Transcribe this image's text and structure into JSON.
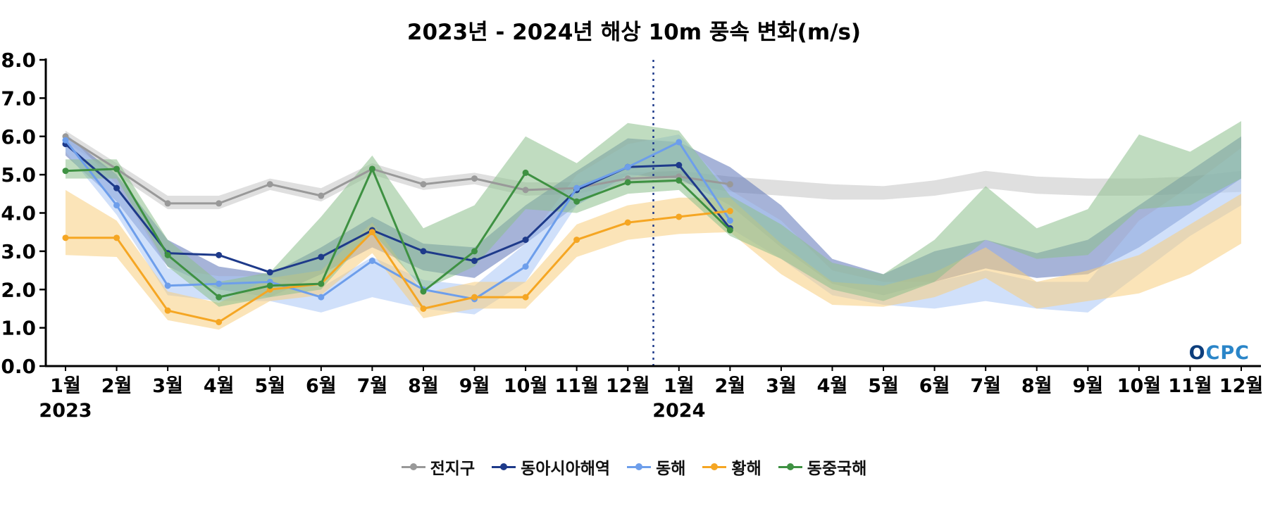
{
  "watermark": "OCPC",
  "chart_data": {
    "type": "line",
    "title": "2023년 - 2024년 해상 10m 풍속 변화(m/s)",
    "xlabel": "",
    "ylabel": "",
    "ylim": [
      0,
      8
    ],
    "ytick_values": [
      0,
      1,
      2,
      3,
      4,
      5,
      6,
      7,
      8
    ],
    "ytick_labels": [
      "0.0",
      "1.0",
      "2.0",
      "3.0",
      "4.0",
      "5.0",
      "6.0",
      "7.0",
      "8.0"
    ],
    "x_labels": [
      "1월",
      "2월",
      "3월",
      "4월",
      "5월",
      "6월",
      "7월",
      "8월",
      "9월",
      "10월",
      "11월",
      "12월",
      "1월",
      "2월",
      "3월",
      "4월",
      "5월",
      "6월",
      "7월",
      "8월",
      "9월",
      "10월",
      "11월",
      "12월"
    ],
    "year_labels": [
      {
        "label": "2023",
        "month_index": 0
      },
      {
        "label": "2024",
        "month_index": 12
      }
    ],
    "divider_after_index": 11,
    "legend_position": "bottom",
    "grid": false,
    "series": [
      {
        "key": "global",
        "name": "전지구",
        "color": "#999999",
        "band_color": "#c4c4c4",
        "values": [
          6.0,
          5.15,
          4.25,
          4.25,
          4.75,
          4.45,
          5.15,
          4.75,
          4.9,
          4.6,
          4.65,
          4.9,
          4.95,
          4.75,
          null,
          null,
          null,
          null,
          null,
          null,
          null,
          null,
          null,
          null
        ],
        "band": [
          [
            5.85,
            6.15
          ],
          [
            5.0,
            5.3
          ],
          [
            4.1,
            4.45
          ],
          [
            4.1,
            4.45
          ],
          [
            4.6,
            4.9
          ],
          [
            4.3,
            4.65
          ],
          [
            5.0,
            5.3
          ],
          [
            4.6,
            4.9
          ],
          [
            4.75,
            5.05
          ],
          [
            4.45,
            4.8
          ],
          [
            4.5,
            4.8
          ],
          [
            4.75,
            5.05
          ],
          [
            4.8,
            5.1
          ],
          [
            4.55,
            4.95
          ],
          [
            4.45,
            4.85
          ],
          [
            4.35,
            4.75
          ],
          [
            4.35,
            4.7
          ],
          [
            4.45,
            4.85
          ],
          [
            4.65,
            5.1
          ],
          [
            4.5,
            4.95
          ],
          [
            4.45,
            4.9
          ],
          [
            4.45,
            4.9
          ],
          [
            4.5,
            4.95
          ],
          [
            4.55,
            5.1
          ]
        ]
      },
      {
        "key": "east-asia-seas",
        "name": "동아시아해역",
        "color": "#1e3a8a",
        "band_color": "#5d74b8",
        "values": [
          5.8,
          4.65,
          2.95,
          2.9,
          2.45,
          2.85,
          3.55,
          3.0,
          2.75,
          3.3,
          4.6,
          5.2,
          5.25,
          3.6,
          null,
          null,
          null,
          null,
          null,
          null,
          null,
          null,
          null,
          null
        ],
        "band": [
          [
            5.5,
            6.05
          ],
          [
            4.3,
            5.0
          ],
          [
            2.6,
            3.3
          ],
          [
            2.0,
            2.6
          ],
          [
            1.8,
            2.4
          ],
          [
            2.4,
            3.1
          ],
          [
            3.1,
            3.9
          ],
          [
            2.5,
            3.2
          ],
          [
            2.3,
            3.1
          ],
          [
            3.2,
            4.2
          ],
          [
            4.2,
            5.1
          ],
          [
            5.0,
            5.95
          ],
          [
            4.9,
            5.85
          ],
          [
            4.2,
            5.2
          ],
          [
            3.1,
            4.2
          ],
          [
            2.15,
            2.8
          ],
          [
            1.85,
            2.4
          ],
          [
            2.2,
            3.0
          ],
          [
            2.55,
            3.3
          ],
          [
            2.3,
            2.95
          ],
          [
            2.4,
            3.3
          ],
          [
            3.1,
            4.2
          ],
          [
            4.0,
            5.1
          ],
          [
            4.9,
            6.0
          ]
        ]
      },
      {
        "key": "east-sea",
        "name": "동해",
        "color": "#6d9eeb",
        "band_color": "#a9c6f5",
        "values": [
          5.9,
          4.2,
          2.1,
          2.15,
          2.2,
          1.8,
          2.75,
          2.0,
          1.75,
          2.6,
          4.65,
          5.2,
          5.85,
          3.8,
          null,
          null,
          null,
          null,
          null,
          null,
          null,
          null,
          null,
          null
        ],
        "band": [
          [
            5.6,
            6.1
          ],
          [
            3.95,
            4.75
          ],
          [
            1.85,
            2.55
          ],
          [
            1.7,
            2.35
          ],
          [
            1.7,
            2.35
          ],
          [
            1.4,
            2.05
          ],
          [
            1.8,
            2.85
          ],
          [
            1.5,
            2.25
          ],
          [
            1.35,
            2.1
          ],
          [
            2.2,
            3.2
          ],
          [
            4.2,
            5.0
          ],
          [
            4.9,
            5.8
          ],
          [
            5.3,
            6.05
          ],
          [
            3.6,
            4.6
          ],
          [
            2.8,
            3.8
          ],
          [
            1.85,
            2.5
          ],
          [
            1.6,
            2.2
          ],
          [
            1.5,
            2.2
          ],
          [
            1.7,
            2.5
          ],
          [
            1.5,
            2.2
          ],
          [
            1.4,
            2.2
          ],
          [
            2.4,
            3.8
          ],
          [
            3.4,
            4.7
          ],
          [
            4.2,
            5.7
          ]
        ]
      },
      {
        "key": "yellow-sea",
        "name": "황해",
        "color": "#f5a623",
        "band_color": "#f8cd7e",
        "values": [
          3.35,
          3.35,
          1.45,
          1.15,
          2.0,
          2.15,
          3.5,
          1.5,
          1.8,
          1.8,
          3.3,
          3.75,
          3.9,
          4.05,
          null,
          null,
          null,
          null,
          null,
          null,
          null,
          null,
          null,
          null
        ],
        "band": [
          [
            2.9,
            4.6
          ],
          [
            2.85,
            3.8
          ],
          [
            1.2,
            1.95
          ],
          [
            0.95,
            1.65
          ],
          [
            1.7,
            2.3
          ],
          [
            1.85,
            2.5
          ],
          [
            2.95,
            3.75
          ],
          [
            1.25,
            1.9
          ],
          [
            1.5,
            2.2
          ],
          [
            1.5,
            2.2
          ],
          [
            2.85,
            3.7
          ],
          [
            3.3,
            4.2
          ],
          [
            3.45,
            4.4
          ],
          [
            3.5,
            4.4
          ],
          [
            2.4,
            3.2
          ],
          [
            1.6,
            2.2
          ],
          [
            1.55,
            2.1
          ],
          [
            1.8,
            2.45
          ],
          [
            2.3,
            3.1
          ],
          [
            1.5,
            2.2
          ],
          [
            1.7,
            2.5
          ],
          [
            1.9,
            2.9
          ],
          [
            2.4,
            3.7
          ],
          [
            3.2,
            4.5
          ]
        ]
      },
      {
        "key": "east-china-sea",
        "name": "동중국해",
        "color": "#3e9142",
        "band_color": "#8cbf8c",
        "values": [
          5.1,
          5.15,
          2.9,
          1.8,
          2.1,
          2.15,
          5.15,
          1.95,
          3.0,
          5.05,
          4.3,
          4.8,
          4.85,
          3.55,
          null,
          null,
          null,
          null,
          null,
          null,
          null,
          null,
          null,
          null
        ],
        "band": [
          [
            4.9,
            5.4
          ],
          [
            4.9,
            5.4
          ],
          [
            2.6,
            3.3
          ],
          [
            1.55,
            2.2
          ],
          [
            1.8,
            2.45
          ],
          [
            2.0,
            3.9
          ],
          [
            3.5,
            5.5
          ],
          [
            2.0,
            3.6
          ],
          [
            2.6,
            4.2
          ],
          [
            4.1,
            6.0
          ],
          [
            4.0,
            5.3
          ],
          [
            4.5,
            6.35
          ],
          [
            4.6,
            6.15
          ],
          [
            3.4,
            4.45
          ],
          [
            2.8,
            3.7
          ],
          [
            2.0,
            2.7
          ],
          [
            1.7,
            2.4
          ],
          [
            2.2,
            3.3
          ],
          [
            3.3,
            4.7
          ],
          [
            2.8,
            3.6
          ],
          [
            2.9,
            4.1
          ],
          [
            4.1,
            6.05
          ],
          [
            4.2,
            5.6
          ],
          [
            4.9,
            6.4
          ]
        ]
      }
    ]
  }
}
